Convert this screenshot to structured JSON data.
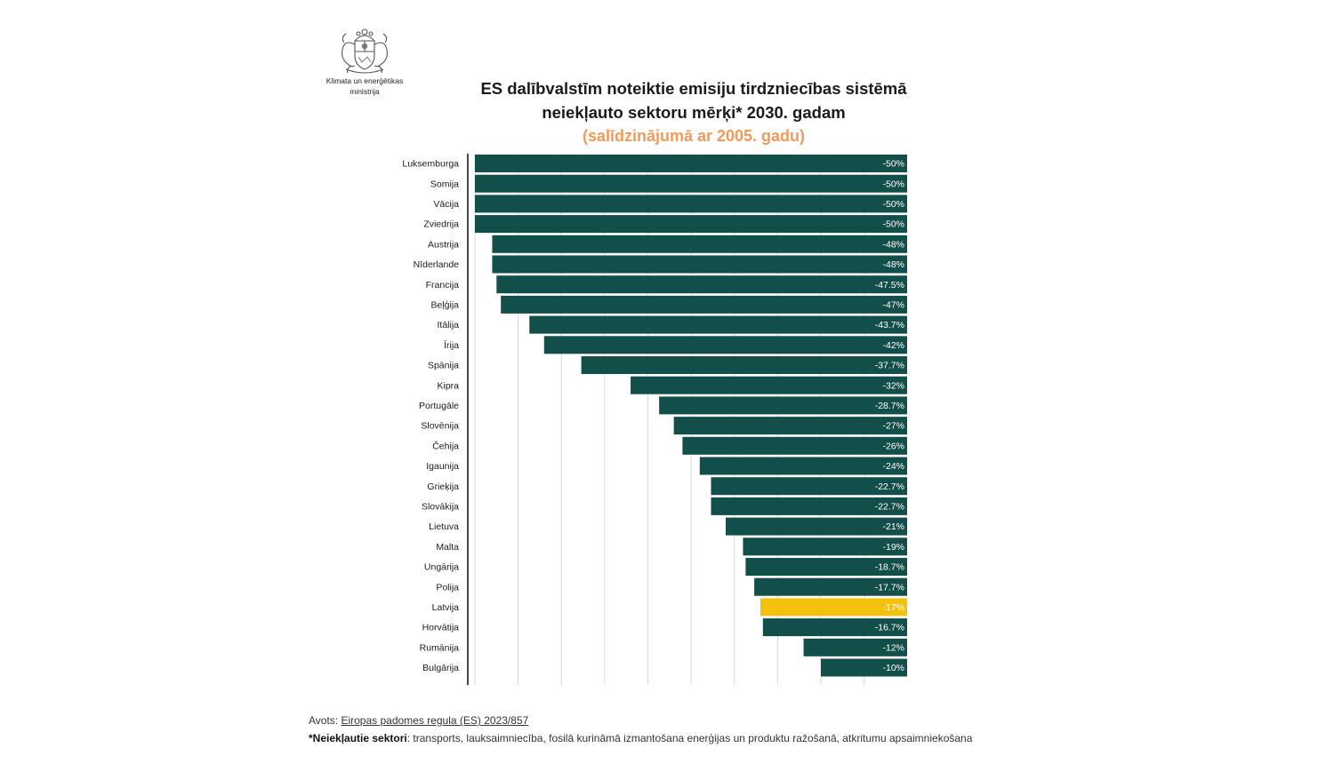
{
  "logo": {
    "org_line1": "Klimata un enerģētikas",
    "org_line2": "ministrija",
    "icon": "latvia-coat-of-arms-icon"
  },
  "header": {
    "title_line1": "ES dalībvalstīm noteiktie emisiju tirdzniecības sistēmā",
    "title_line2": "neiekļauto sektoru mērķi* 2030. gadam",
    "subtitle": "(salīdzinājumā ar 2005. gadu)"
  },
  "colors": {
    "bar": "#134f4a",
    "highlight": "#f4c20d",
    "subtitle": "#f39a5b",
    "gridline": "#d9d9d9"
  },
  "chart_data": {
    "type": "bar",
    "orientation": "horizontal",
    "title": "ES dalībvalstīm noteiktie emisiju tirdzniecības sistēmā neiekļauto sektoru mērķi* 2030. gadam",
    "subtitle": "(salīdzinājumā ar 2005. gadu)",
    "xlabel": "",
    "ylabel": "",
    "xlim": [
      0,
      -50
    ],
    "grid": true,
    "highlight_category": "Latvija",
    "categories": [
      "Luksemburga",
      "Somija",
      "Vācija",
      "Zviedrija",
      "Austrija",
      "Nīderlande",
      "Francija",
      "Beļģija",
      "Itālija",
      "Īrija",
      "Spānija",
      "Kipra",
      "Portugāle",
      "Slovēnija",
      "Čehija",
      "Igaunija",
      "Grieķija",
      "Slovākija",
      "Lietuva",
      "Malta",
      "Ungārija",
      "Polija",
      "Latvija",
      "Horvātija",
      "Rumānija",
      "Bulgārija"
    ],
    "values": [
      -50,
      -50,
      -50,
      -50,
      -48,
      -48,
      -47.5,
      -47,
      -43.7,
      -42,
      -37.7,
      -32,
      -28.7,
      -27,
      -26,
      -24,
      -22.7,
      -22.7,
      -21,
      -19,
      -18.7,
      -17.7,
      -17,
      -16.7,
      -12,
      -10
    ],
    "labels": [
      "-50%",
      "-50%",
      "-50%",
      "-50%",
      "-48%",
      "-48%",
      "-47.5%",
      "-47%",
      "-43.7%",
      "-42%",
      "-37.7%",
      "-32%",
      "-28.7%",
      "-27%",
      "-26%",
      "-24%",
      "-22.7%",
      "-22.7%",
      "-21%",
      "-19%",
      "-18.7%",
      "-17.7%",
      "-17%",
      "-16.7%",
      "-12%",
      "-10%"
    ]
  },
  "footer": {
    "source_prefix": "Avots: ",
    "source_link": "Eiropas padomes regula (ES) 2023/857",
    "note_bold": "*Neiekļautie sektori",
    "note_text": ": transports, lauksaimniecība, fosilā kurināmā izmantošana enerģijas un produktu ražošanā, atkritumu apsaimniekošana"
  }
}
